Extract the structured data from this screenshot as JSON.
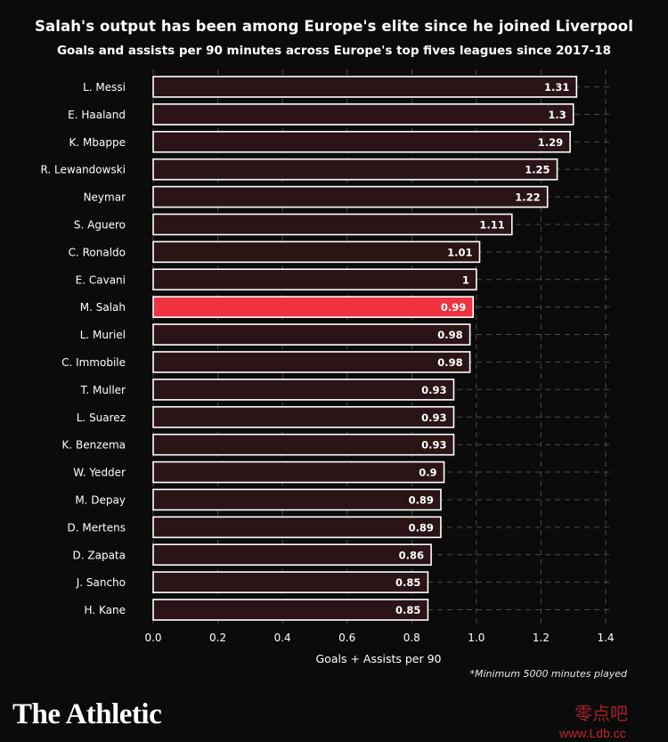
{
  "header": {
    "title": "Salah's output has been among Europe's elite since he joined Liverpool",
    "subtitle": "Goals and assists per 90 minutes across Europe's top fives leagues since 2017-18"
  },
  "footnote": "*Minimum 5000 minutes played",
  "logo": "The Athletic",
  "watermark": {
    "cn": "零点吧",
    "url": "www.Ldb.cc"
  },
  "colors": {
    "background": "#0b0b0b",
    "bar_fill": "#2a1416",
    "bar_stroke": "#ffffff",
    "highlight": "#ef3340",
    "grid": "#4a4a4a"
  },
  "chart_data": {
    "type": "bar",
    "orientation": "horizontal",
    "categories": [
      "L. Messi",
      "E. Haaland",
      "K. Mbappe",
      "R. Lewandowski",
      "Neymar",
      "S. Aguero",
      "C. Ronaldo",
      "E. Cavani",
      "M. Salah",
      "L. Muriel",
      "C. Immobile",
      "T. Muller",
      "L. Suarez",
      "K. Benzema",
      "W. Yedder",
      "M. Depay",
      "D. Mertens",
      "D. Zapata",
      "J. Sancho",
      "H. Kane"
    ],
    "values": [
      1.31,
      1.3,
      1.29,
      1.25,
      1.22,
      1.11,
      1.01,
      1,
      0.99,
      0.98,
      0.98,
      0.93,
      0.93,
      0.93,
      0.9,
      0.89,
      0.89,
      0.86,
      0.85,
      0.85
    ],
    "value_labels": [
      "1.31",
      "1.3",
      "1.29",
      "1.25",
      "1.22",
      "1.11",
      "1.01",
      "1",
      "0.99",
      "0.98",
      "0.98",
      "0.93",
      "0.93",
      "0.93",
      "0.9",
      "0.89",
      "0.89",
      "0.86",
      "0.85",
      "0.85"
    ],
    "highlight": "M. Salah",
    "xlabel": "Goals + Assists per 90",
    "ylabel": "",
    "xlim": [
      0,
      1.4
    ],
    "xticks": [
      "0.0",
      "0.2",
      "0.4",
      "0.6",
      "0.8",
      "1.0",
      "1.2",
      "1.4"
    ],
    "grid": true
  }
}
